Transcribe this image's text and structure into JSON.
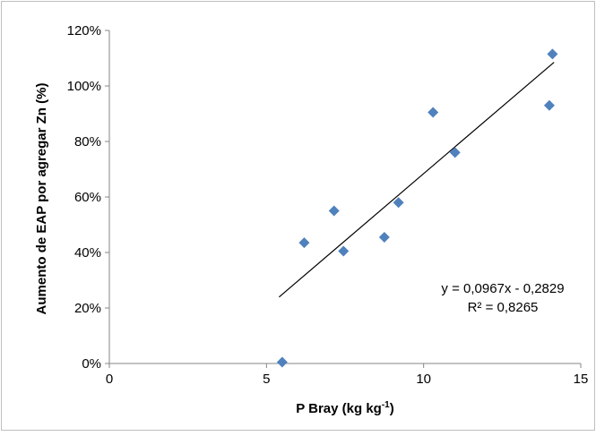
{
  "chart_data": {
    "type": "scatter",
    "xlabel": "P Bray (kg kg",
    "xlabel_sup": "-1",
    "xlabel_suffix": ")",
    "ylabel": "Aumento de EAP por agregar  Zn (%)",
    "xlim": [
      0,
      15
    ],
    "ylim": [
      0,
      1.2
    ],
    "x_ticks": [
      0,
      5,
      10,
      15
    ],
    "x_tick_labels": [
      "0",
      "5",
      "10",
      "15"
    ],
    "y_ticks": [
      0,
      0.2,
      0.4,
      0.6,
      0.8,
      1.0,
      1.2
    ],
    "y_tick_labels": [
      "0%",
      "20%",
      "40%",
      "60%",
      "80%",
      "100%",
      "120%"
    ],
    "grid": false,
    "marker_color": "#4f81bd",
    "points": [
      {
        "x": 5.5,
        "y": 0.005
      },
      {
        "x": 6.2,
        "y": 0.435
      },
      {
        "x": 7.15,
        "y": 0.55
      },
      {
        "x": 7.45,
        "y": 0.405
      },
      {
        "x": 8.75,
        "y": 0.455
      },
      {
        "x": 9.2,
        "y": 0.58
      },
      {
        "x": 10.3,
        "y": 0.905
      },
      {
        "x": 11.0,
        "y": 0.76
      },
      {
        "x": 14.0,
        "y": 0.93
      },
      {
        "x": 14.1,
        "y": 1.115
      }
    ],
    "trendline": {
      "slope": 0.0967,
      "intercept": -0.2829,
      "x_start": 5.4,
      "x_end": 14.15
    },
    "equation_text": "y = 0,0967x  - 0,2829",
    "r2_text": "R² = 0,8265"
  }
}
